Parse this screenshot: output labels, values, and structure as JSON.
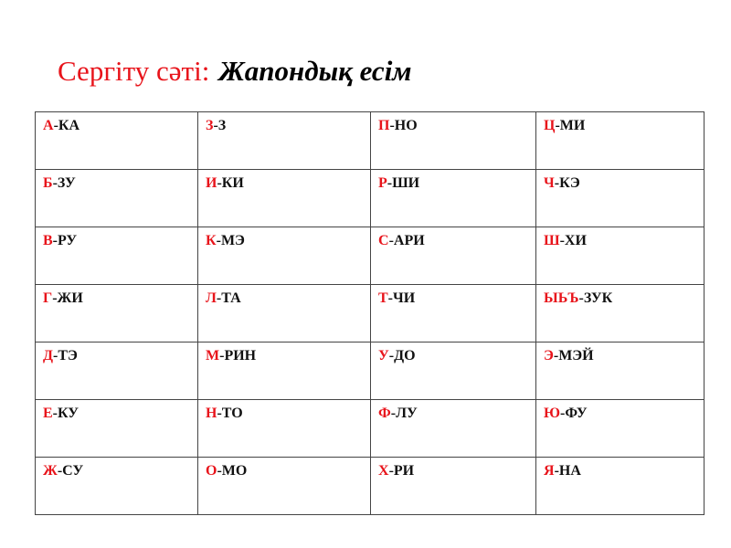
{
  "title": {
    "prefix": "Сергіту сәті:",
    "main": "Жапондық  есім"
  },
  "colors": {
    "accent": "#e8141b",
    "text": "#111111"
  },
  "table": [
    [
      {
        "l": "А",
        "s": "-КА"
      },
      {
        "l": "З",
        "s": "-З"
      },
      {
        "l": "П",
        "s": "-НО"
      },
      {
        "l": "Ц",
        "s": "-МИ"
      }
    ],
    [
      {
        "l": "Б",
        "s": "-ЗУ"
      },
      {
        "l": "И",
        "s": "-КИ"
      },
      {
        "l": "Р",
        "s": "-ШИ"
      },
      {
        "l": "Ч",
        "s": "-КЭ"
      }
    ],
    [
      {
        "l": "В",
        "s": "-РУ"
      },
      {
        "l": "К",
        "s": "-МЭ"
      },
      {
        "l": "С",
        "s": "-АРИ"
      },
      {
        "l": "Ш",
        "s": "-ХИ"
      }
    ],
    [
      {
        "l": "Г",
        "s": "-ЖИ"
      },
      {
        "l": "Л",
        "s": "-ТА"
      },
      {
        "l": "Т",
        "s": "-ЧИ"
      },
      {
        "l": "ЫЬЪ",
        "s": "-ЗУК"
      }
    ],
    [
      {
        "l": "Д",
        "s": "-ТЭ"
      },
      {
        "l": "М",
        "s": "-РИН"
      },
      {
        "l": "У",
        "s": "-ДО"
      },
      {
        "l": "Э",
        "s": "-МЭЙ"
      }
    ],
    [
      {
        "l": "Е",
        "s": "-КУ"
      },
      {
        "l": "Н",
        "s": "-ТО"
      },
      {
        "l": "Ф",
        "s": "-ЛУ"
      },
      {
        "l": "Ю",
        "s": "-ФУ"
      }
    ],
    [
      {
        "l": "Ж",
        "s": "-СУ"
      },
      {
        "l": "О",
        "s": "-МО"
      },
      {
        "l": "Х",
        "s": "-РИ"
      },
      {
        "l": "Я",
        "s": "-НА"
      }
    ]
  ]
}
